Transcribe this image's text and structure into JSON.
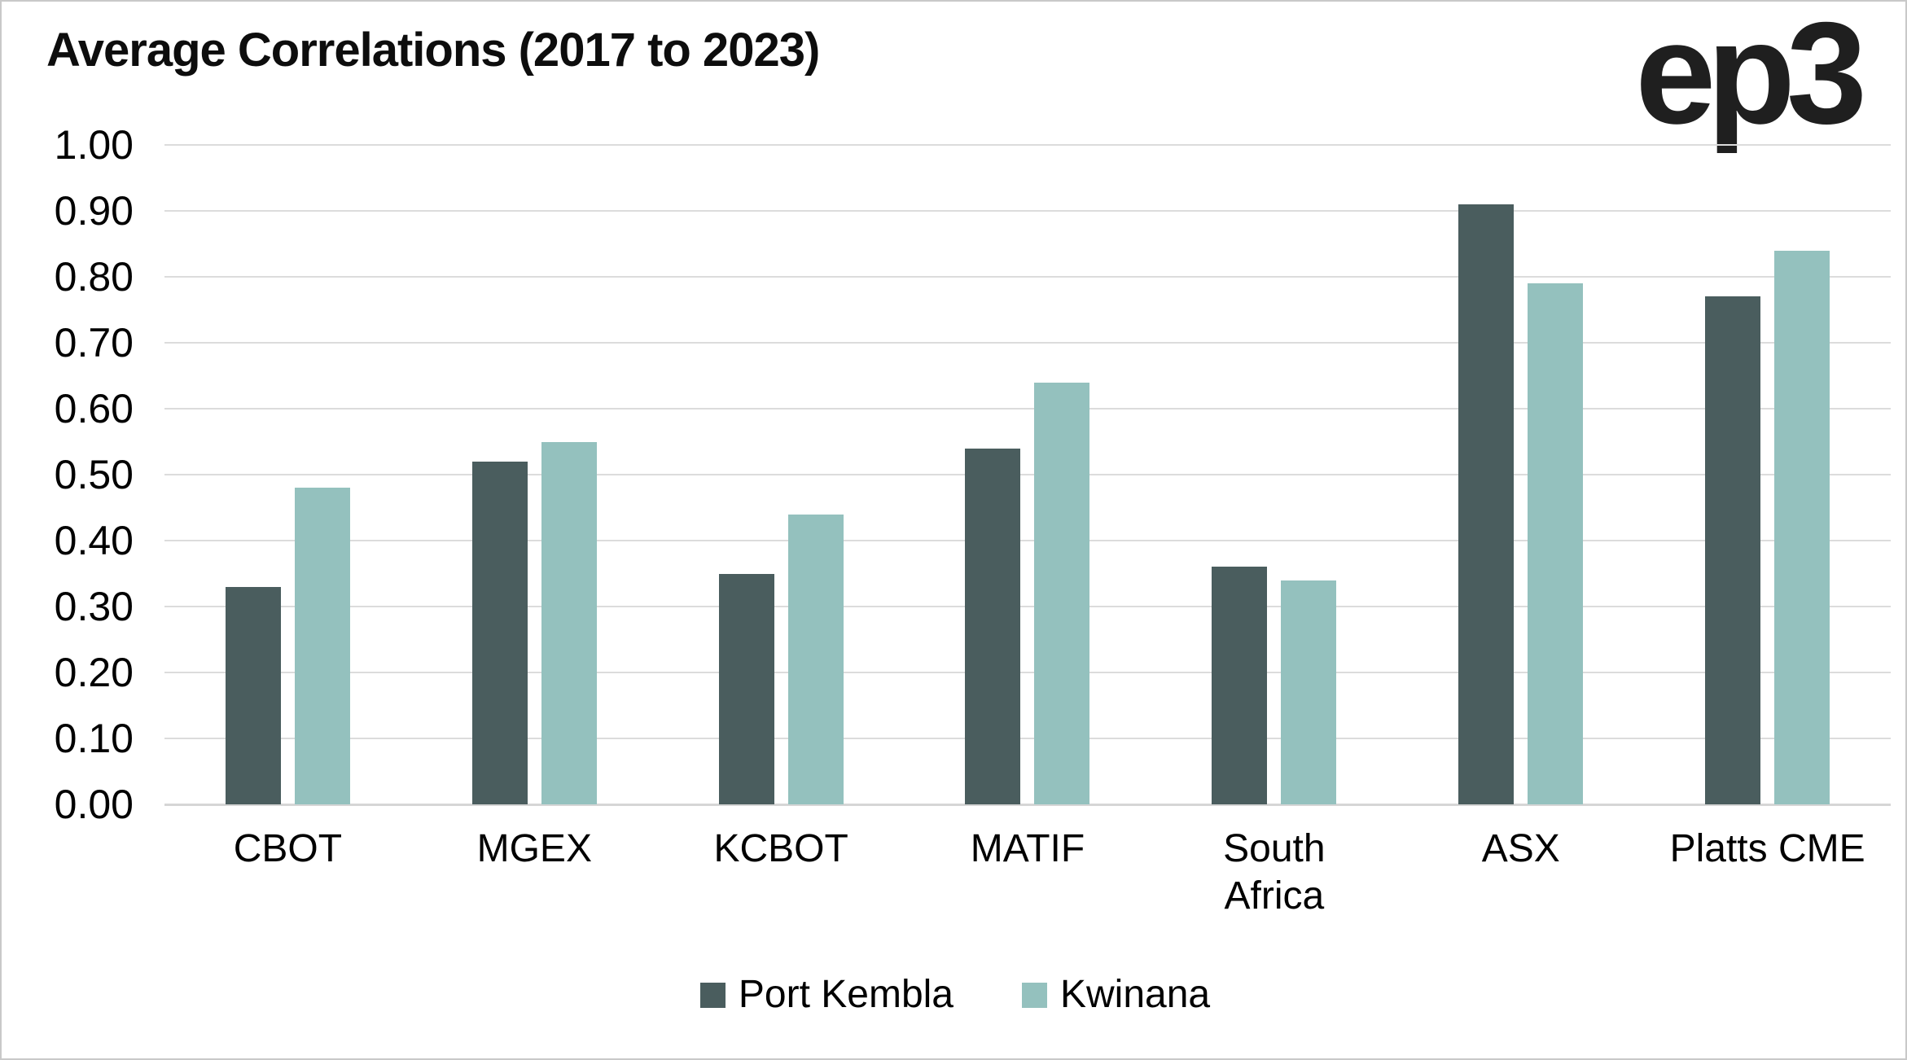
{
  "window": {
    "background": "#ffffff",
    "border_color": "#c9c9c9"
  },
  "header": {
    "logo_text": "ep3"
  },
  "chart_data": {
    "type": "bar",
    "title": "Average Correlations (2017 to 2023)",
    "categories": [
      "CBOT",
      "MGEX",
      "KCBOT",
      "MATIF",
      "South Africa",
      "ASX",
      "Platts CME"
    ],
    "category_display": [
      [
        "CBOT"
      ],
      [
        "MGEX"
      ],
      [
        "KCBOT"
      ],
      [
        "MATIF"
      ],
      [
        "South",
        "Africa"
      ],
      [
        "ASX"
      ],
      [
        "Platts CME"
      ]
    ],
    "series": [
      {
        "name": "Port Kembla",
        "color": "#4a5d5e",
        "values": [
          0.33,
          0.52,
          0.35,
          0.54,
          0.36,
          0.91,
          0.77
        ]
      },
      {
        "name": "Kwinana",
        "color": "#94c1be",
        "values": [
          0.48,
          0.55,
          0.44,
          0.64,
          0.34,
          0.79,
          0.84
        ]
      }
    ],
    "xlabel": "",
    "ylabel": "",
    "ylim": [
      0.0,
      1.0
    ],
    "ytick_step": 0.1,
    "ytick_labels": [
      "0.00",
      "0.10",
      "0.20",
      "0.30",
      "0.40",
      "0.50",
      "0.60",
      "0.70",
      "0.80",
      "0.90",
      "1.00"
    ],
    "grid": "horizontal",
    "gridline_color": "#dcdcdc",
    "axis_line_color": "#d6d6d6",
    "legend_position": "bottom",
    "legend_entries": [
      "Port Kembla",
      "Kwinana"
    ]
  }
}
